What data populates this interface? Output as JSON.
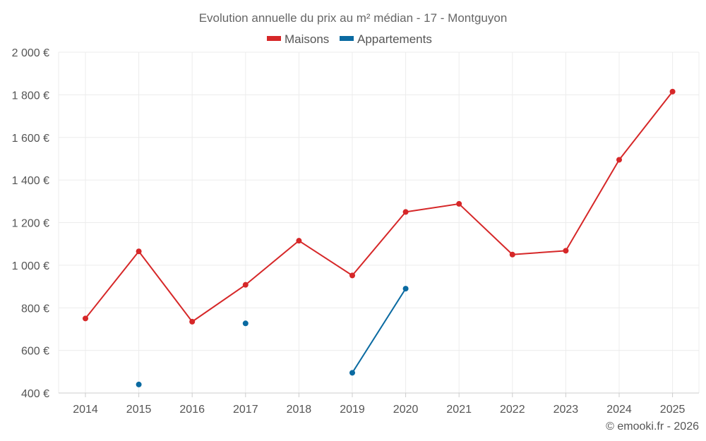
{
  "chart_data": {
    "type": "line",
    "title": "Evolution annuelle du prix au m² médian - 17 - Montguyon",
    "categories": [
      "2014",
      "2015",
      "2016",
      "2017",
      "2018",
      "2019",
      "2020",
      "2021",
      "2022",
      "2023",
      "2024",
      "2025"
    ],
    "series": [
      {
        "name": "Maisons",
        "color": "#d62728",
        "values": [
          750,
          1065,
          735,
          908,
          1115,
          952,
          1250,
          1288,
          1050,
          1068,
          1495,
          1815
        ]
      },
      {
        "name": "Appartements",
        "color": "#0a6aa1",
        "values": [
          null,
          440,
          null,
          727,
          null,
          495,
          890,
          null,
          null,
          null,
          null,
          null
        ]
      }
    ],
    "ylim": [
      400,
      2000
    ],
    "yticks": [
      400,
      600,
      800,
      1000,
      1200,
      1400,
      1600,
      1800,
      2000
    ],
    "ytick_labels": [
      "400 €",
      "600 €",
      "800 €",
      "1 000 €",
      "1 200 €",
      "1 400 €",
      "1 600 €",
      "1 800 €",
      "2 000 €"
    ],
    "xlabel": "",
    "ylabel": "",
    "grid": true,
    "legend_position": "top-center"
  },
  "credit": "© emooki.fr - 2026"
}
